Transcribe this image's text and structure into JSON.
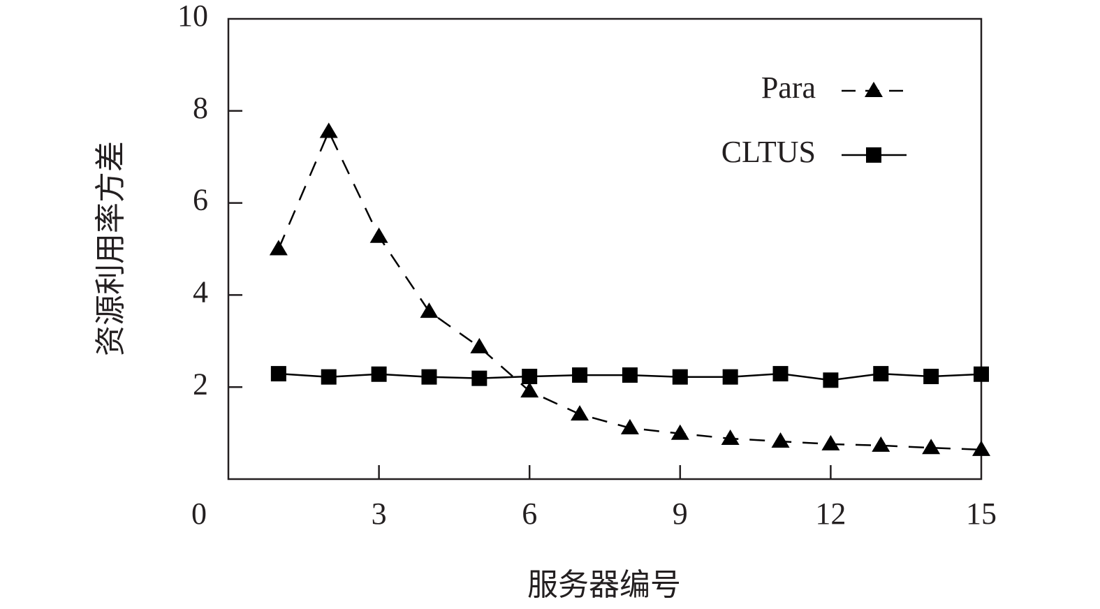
{
  "chart_data": {
    "type": "line",
    "x_label": "服务器编号",
    "y_label": "资源利用率方差",
    "x": [
      1,
      2,
      3,
      4,
      5,
      6,
      7,
      8,
      9,
      10,
      11,
      12,
      13,
      14,
      15
    ],
    "series": [
      {
        "name": "Para",
        "color": "#000000",
        "linestyle": "dashed",
        "marker": "triangle",
        "values": [
          5.0,
          7.55,
          5.27,
          3.64,
          2.87,
          1.91,
          1.41,
          1.11,
          0.99,
          0.88,
          0.82,
          0.76,
          0.73,
          0.68,
          0.64
        ]
      },
      {
        "name": "CLTUS",
        "color": "#000000",
        "linestyle": "solid",
        "marker": "square",
        "values": [
          2.29,
          2.22,
          2.28,
          2.22,
          2.19,
          2.23,
          2.26,
          2.26,
          2.22,
          2.22,
          2.29,
          2.15,
          2.29,
          2.23,
          2.28
        ]
      }
    ],
    "xlim": [
      0,
      15
    ],
    "xticks": [
      0,
      3,
      6,
      9,
      12,
      15
    ],
    "ylim": [
      0,
      10
    ],
    "yticks": [
      2,
      4,
      6,
      8,
      10
    ],
    "legend": "upper right"
  }
}
